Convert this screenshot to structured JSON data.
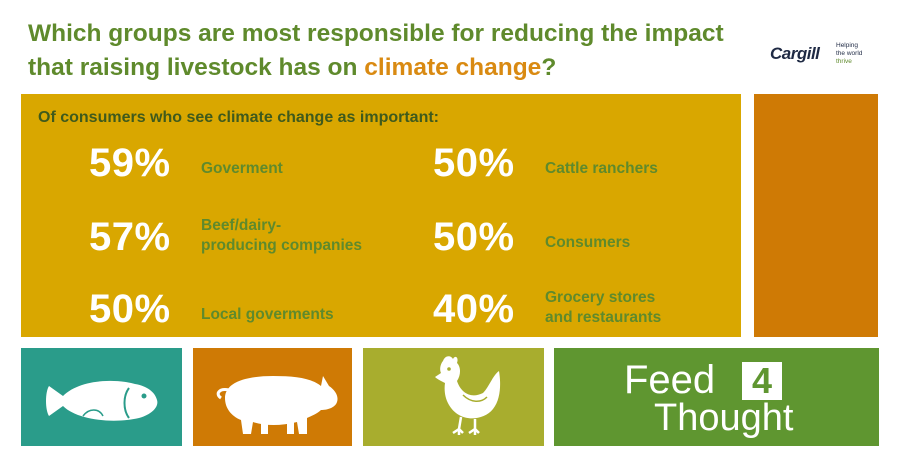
{
  "header": {
    "title_part1": "Which groups are most responsible for reducing the impact that raising livestock has on ",
    "title_highlight": "climate change",
    "title_end": "?"
  },
  "logo": {
    "name": "Cargill",
    "tagline_1": "Helping",
    "tagline_2": "the world",
    "tagline_3": "thrive"
  },
  "panel": {
    "subtitle": "Of consumers who see climate change as important:",
    "stats": [
      {
        "pct": "59%",
        "label_1": "Goverment",
        "label_2": ""
      },
      {
        "pct": "57%",
        "label_1": "Beef/dairy-",
        "label_2": "producing companies"
      },
      {
        "pct": "50%",
        "label_1": "Local goverments",
        "label_2": ""
      },
      {
        "pct": "50%",
        "label_1": "Cattle ranchers",
        "label_2": ""
      },
      {
        "pct": "50%",
        "label_1": "Consumers",
        "label_2": ""
      },
      {
        "pct": "40%",
        "label_1": "Grocery stores",
        "label_2": "and restaurants"
      }
    ]
  },
  "tiles": {
    "fish_icon": "fish-icon",
    "pig_icon": "pig-icon",
    "chicken_icon": "chicken-icon"
  },
  "brand": {
    "feed": "Feed",
    "four": "4",
    "thought": "Thought"
  },
  "colors": {
    "title_green": "#5f8a2c",
    "highlight_orange": "#d98a12",
    "panel_gold": "#d9a700",
    "side_orange": "#cf7a05",
    "teal": "#2a9c8a",
    "olive": "#a8ad2e",
    "brand_green": "#5f9630"
  }
}
